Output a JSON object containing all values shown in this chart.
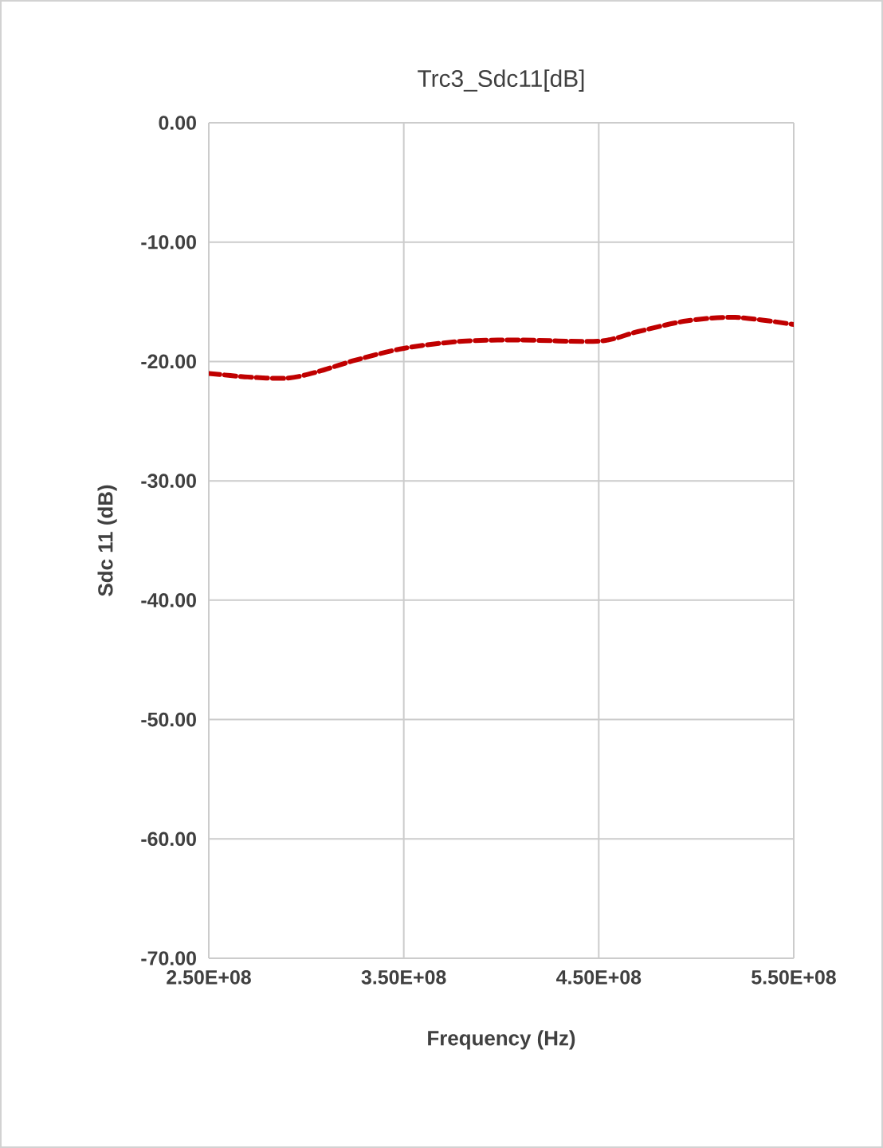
{
  "chart_data": {
    "type": "line",
    "title": "Trc3_Sdc11[dB]",
    "xlabel": "Frequency (Hz)",
    "ylabel": "Sdc 11 (dB)",
    "series": [
      {
        "color": "#c00000",
        "line_style": "dashed",
        "x": [
          250000000,
          270000000,
          290000000,
          305000000,
          325000000,
          350000000,
          380000000,
          410000000,
          450000000,
          470000000,
          495000000,
          520000000,
          550000000
        ],
        "values": [
          -21.0,
          -21.3,
          -21.4,
          -20.9,
          -19.9,
          -18.9,
          -18.3,
          -18.2,
          -18.3,
          -17.5,
          -16.6,
          -16.3,
          -16.9
        ]
      }
    ],
    "xlim": [
      250000000,
      550000000
    ],
    "xticks": [
      {
        "value": 250000000,
        "label": "2.50E+08"
      },
      {
        "value": 350000000,
        "label": "3.50E+08"
      },
      {
        "value": 450000000,
        "label": "4.50E+08"
      },
      {
        "value": 550000000,
        "label": "5.50E+08"
      }
    ],
    "ylim": [
      -70,
      0
    ],
    "yticks": [
      {
        "value": -70,
        "label": "-70.00"
      },
      {
        "value": -60,
        "label": "-60.00"
      },
      {
        "value": -50,
        "label": "-50.00"
      },
      {
        "value": -40,
        "label": "-40.00"
      },
      {
        "value": -30,
        "label": "-30.00"
      },
      {
        "value": -20,
        "label": "-20.00"
      },
      {
        "value": -10,
        "label": "-10.00"
      },
      {
        "value": 0,
        "label": "0.00"
      }
    ],
    "grid": true,
    "marker": "none"
  }
}
